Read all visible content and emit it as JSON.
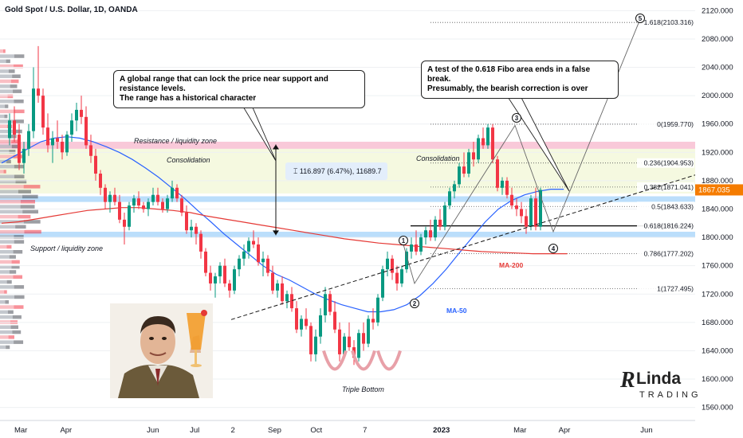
{
  "header": {
    "symbol": "Gold Spot / U.S. Dollar, 1D, OANDA"
  },
  "colors": {
    "up": "#089981",
    "down": "#f23645",
    "ma50": "#2962ff",
    "ma200": "#e53935",
    "last_price_bg": "#f57c00",
    "zone": "#bbdefb",
    "resistance": "#f8bbd0",
    "consolidation": "#f5f9e0"
  },
  "callouts": {
    "range": {
      "line1": "A global range that can lock the price near support and resistance levels.",
      "line2": "The range has a historical character"
    },
    "fibo": {
      "line1": "A test of the 0.618 Fibo area ends in a false break.",
      "line2": "Presumably, the bearish correction is over"
    }
  },
  "measure": {
    "label": "116.897 (6.47%), 11689.7"
  },
  "branding": {
    "logo_main": "Linda",
    "logo_sub": "TRADING",
    "logo_initial": "R"
  },
  "photo": {
    "description_icon": "person-with-drink-icon"
  },
  "chart_data": {
    "type": "candlestick",
    "y_axis": {
      "ticks": [
        1560,
        1600,
        1640,
        1680,
        1720,
        1760,
        1800,
        1840,
        1880,
        1920,
        1960,
        2000,
        2040,
        2080,
        2120
      ],
      "range": [
        1545,
        2135
      ],
      "labels": [
        "1560.000",
        "1600.000",
        "1640.000",
        "1680.000",
        "1720.000",
        "1760.000",
        "1800.000",
        "1840.000",
        "1880.000",
        "1920.000",
        "1960.000",
        "2000.000",
        "2040.000",
        "2080.000",
        "2120.000"
      ]
    },
    "x_axis": {
      "labels": [
        "Mar",
        "Apr",
        "Jun",
        "Jul",
        "2",
        "Sep",
        "Oct",
        "7",
        "2023",
        "Mar",
        "Apr",
        "Jun"
      ],
      "label_positions": [
        0.03,
        0.095,
        0.22,
        0.28,
        0.335,
        0.395,
        0.455,
        0.525,
        0.635,
        0.748,
        0.812,
        0.93
      ]
    },
    "last_price": {
      "value": 1867.035,
      "label": "1867.035"
    },
    "fib_levels": [
      {
        "ratio": "1.618",
        "value": 2103.316,
        "label": "1.618(2103.316)"
      },
      {
        "ratio": "0",
        "value": 1959.77,
        "label": "0(1959.770)"
      },
      {
        "ratio": "0.236",
        "value": 1904.953,
        "label": "0.236(1904.953)"
      },
      {
        "ratio": "0.382",
        "value": 1871.041,
        "label": "0.382(1871.041)"
      },
      {
        "ratio": "0.5",
        "value": 1843.633,
        "label": "0.5(1843.633)"
      },
      {
        "ratio": "0.618",
        "value": 1816.224,
        "label": "0.618(1816.224)"
      },
      {
        "ratio": "0.786",
        "value": 1777.202,
        "label": "0.786(1777.202)"
      },
      {
        "ratio": "1",
        "value": 1727.495,
        "label": "1(1727.495)"
      }
    ],
    "zones": {
      "resistance": {
        "low": 1925,
        "high": 1935,
        "label": "Resistance / liquidity zone"
      },
      "consolidation": {
        "low": 1862,
        "high": 1925,
        "label": "Consolidation"
      },
      "support_blue_top": {
        "low": 1850,
        "high": 1858
      },
      "support": {
        "low": 1800,
        "high": 1808,
        "label": "Support / liquidity zone"
      }
    },
    "annotations": {
      "consolidation_right": "Consolidation",
      "triple_bottom": "Triple Bottom",
      "ma50": "MA-50",
      "ma200": "MA-200",
      "waves": [
        "1",
        "2",
        "3",
        "4",
        "5"
      ]
    },
    "candles": [
      [
        1940,
        1975,
        1930,
        1965
      ],
      [
        1965,
        1985,
        1935,
        1945
      ],
      [
        1945,
        1960,
        1895,
        1905
      ],
      [
        1905,
        1935,
        1890,
        1925
      ],
      [
        1925,
        1960,
        1915,
        1950
      ],
      [
        1950,
        2040,
        1940,
        2010
      ],
      [
        2010,
        2070,
        1990,
        2000
      ],
      [
        2000,
        2010,
        1945,
        1955
      ],
      [
        1955,
        1975,
        1920,
        1930
      ],
      [
        1930,
        1950,
        1905,
        1940
      ],
      [
        1940,
        1965,
        1925,
        1935
      ],
      [
        1935,
        1945,
        1910,
        1920
      ],
      [
        1920,
        1950,
        1915,
        1945
      ],
      [
        1945,
        1975,
        1935,
        1965
      ],
      [
        1965,
        1990,
        1950,
        1980
      ],
      [
        1980,
        2000,
        1960,
        1970
      ],
      [
        1970,
        1985,
        1925,
        1930
      ],
      [
        1930,
        1945,
        1905,
        1915
      ],
      [
        1915,
        1925,
        1880,
        1890
      ],
      [
        1890,
        1895,
        1860,
        1870
      ],
      [
        1870,
        1875,
        1840,
        1850
      ],
      [
        1850,
        1865,
        1835,
        1860
      ],
      [
        1860,
        1870,
        1845,
        1850
      ],
      [
        1850,
        1860,
        1820,
        1825
      ],
      [
        1825,
        1835,
        1790,
        1815
      ],
      [
        1815,
        1850,
        1810,
        1845
      ],
      [
        1845,
        1860,
        1835,
        1855
      ],
      [
        1855,
        1865,
        1840,
        1845
      ],
      [
        1845,
        1850,
        1835,
        1840
      ],
      [
        1840,
        1855,
        1830,
        1850
      ],
      [
        1850,
        1870,
        1845,
        1860
      ],
      [
        1860,
        1870,
        1845,
        1850
      ],
      [
        1850,
        1855,
        1835,
        1840
      ],
      [
        1840,
        1860,
        1835,
        1855
      ],
      [
        1855,
        1880,
        1850,
        1870
      ],
      [
        1870,
        1875,
        1850,
        1855
      ],
      [
        1855,
        1860,
        1830,
        1835
      ],
      [
        1835,
        1845,
        1805,
        1810
      ],
      [
        1810,
        1825,
        1800,
        1815
      ],
      [
        1815,
        1820,
        1790,
        1805
      ],
      [
        1805,
        1810,
        1770,
        1780
      ],
      [
        1780,
        1785,
        1745,
        1750
      ],
      [
        1750,
        1760,
        1725,
        1735
      ],
      [
        1735,
        1750,
        1715,
        1745
      ],
      [
        1745,
        1765,
        1735,
        1760
      ],
      [
        1760,
        1770,
        1730,
        1735
      ],
      [
        1735,
        1740,
        1715,
        1725
      ],
      [
        1725,
        1760,
        1720,
        1755
      ],
      [
        1755,
        1775,
        1745,
        1770
      ],
      [
        1770,
        1790,
        1760,
        1780
      ],
      [
        1780,
        1800,
        1770,
        1795
      ],
      [
        1795,
        1810,
        1785,
        1790
      ],
      [
        1790,
        1800,
        1760,
        1765
      ],
      [
        1765,
        1780,
        1745,
        1770
      ],
      [
        1770,
        1775,
        1745,
        1750
      ],
      [
        1750,
        1760,
        1720,
        1725
      ],
      [
        1725,
        1740,
        1715,
        1735
      ],
      [
        1735,
        1745,
        1705,
        1710
      ],
      [
        1710,
        1725,
        1700,
        1720
      ],
      [
        1720,
        1730,
        1695,
        1700
      ],
      [
        1700,
        1710,
        1665,
        1670
      ],
      [
        1670,
        1690,
        1660,
        1685
      ],
      [
        1685,
        1700,
        1670,
        1675
      ],
      [
        1675,
        1680,
        1625,
        1635
      ],
      [
        1635,
        1670,
        1625,
        1660
      ],
      [
        1660,
        1700,
        1650,
        1690
      ],
      [
        1690,
        1730,
        1680,
        1720
      ],
      [
        1720,
        1725,
        1690,
        1695
      ],
      [
        1695,
        1710,
        1665,
        1670
      ],
      [
        1670,
        1680,
        1625,
        1635
      ],
      [
        1635,
        1665,
        1630,
        1660
      ],
      [
        1660,
        1680,
        1640,
        1645
      ],
      [
        1645,
        1655,
        1620,
        1630
      ],
      [
        1630,
        1670,
        1625,
        1665
      ],
      [
        1665,
        1680,
        1640,
        1650
      ],
      [
        1650,
        1690,
        1645,
        1685
      ],
      [
        1685,
        1700,
        1670,
        1680
      ],
      [
        1680,
        1720,
        1675,
        1715
      ],
      [
        1715,
        1760,
        1710,
        1755
      ],
      [
        1755,
        1780,
        1745,
        1770
      ],
      [
        1770,
        1775,
        1740,
        1750
      ],
      [
        1750,
        1760,
        1725,
        1735
      ],
      [
        1735,
        1760,
        1730,
        1755
      ],
      [
        1755,
        1785,
        1750,
        1780
      ],
      [
        1780,
        1800,
        1770,
        1790
      ],
      [
        1790,
        1810,
        1775,
        1780
      ],
      [
        1780,
        1805,
        1775,
        1800
      ],
      [
        1800,
        1815,
        1790,
        1810
      ],
      [
        1810,
        1825,
        1795,
        1800
      ],
      [
        1800,
        1830,
        1795,
        1825
      ],
      [
        1825,
        1840,
        1810,
        1815
      ],
      [
        1815,
        1850,
        1810,
        1845
      ],
      [
        1845,
        1870,
        1840,
        1865
      ],
      [
        1865,
        1880,
        1855,
        1875
      ],
      [
        1875,
        1905,
        1870,
        1900
      ],
      [
        1900,
        1920,
        1885,
        1890
      ],
      [
        1890,
        1925,
        1885,
        1920
      ],
      [
        1920,
        1935,
        1900,
        1910
      ],
      [
        1910,
        1945,
        1905,
        1940
      ],
      [
        1940,
        1955,
        1925,
        1930
      ],
      [
        1930,
        1960,
        1925,
        1955
      ],
      [
        1955,
        1960,
        1905,
        1910
      ],
      [
        1910,
        1915,
        1865,
        1870
      ],
      [
        1870,
        1885,
        1860,
        1880
      ],
      [
        1880,
        1885,
        1855,
        1860
      ],
      [
        1860,
        1870,
        1840,
        1845
      ],
      [
        1845,
        1855,
        1830,
        1840
      ],
      [
        1840,
        1850,
        1820,
        1830
      ],
      [
        1830,
        1840,
        1805,
        1815
      ],
      [
        1815,
        1860,
        1810,
        1855
      ],
      [
        1855,
        1870,
        1810,
        1815
      ],
      [
        1815,
        1870,
        1810,
        1867
      ]
    ],
    "ma50": [
      1905,
      1915,
      1925,
      1935,
      1940,
      1942,
      1940,
      1935,
      1928,
      1920,
      1910,
      1898,
      1885,
      1870,
      1855,
      1838,
      1822,
      1805,
      1790,
      1775,
      1760,
      1748,
      1740,
      1730,
      1720,
      1712,
      1705,
      1700,
      1695,
      1695,
      1698,
      1705,
      1718,
      1735,
      1755,
      1778,
      1800,
      1822,
      1840,
      1852,
      1860,
      1865,
      1868,
      1868
    ],
    "ma200": [
      1820,
      1822,
      1826,
      1830,
      1834,
      1838,
      1840,
      1842,
      1842,
      1840,
      1838,
      1835,
      1830,
      1826,
      1822,
      1818,
      1814,
      1810,
      1806,
      1802,
      1798,
      1795,
      1792,
      1790,
      1788,
      1786,
      1784,
      1782,
      1780,
      1779,
      1778,
      1777,
      1777,
      1777
    ]
  }
}
